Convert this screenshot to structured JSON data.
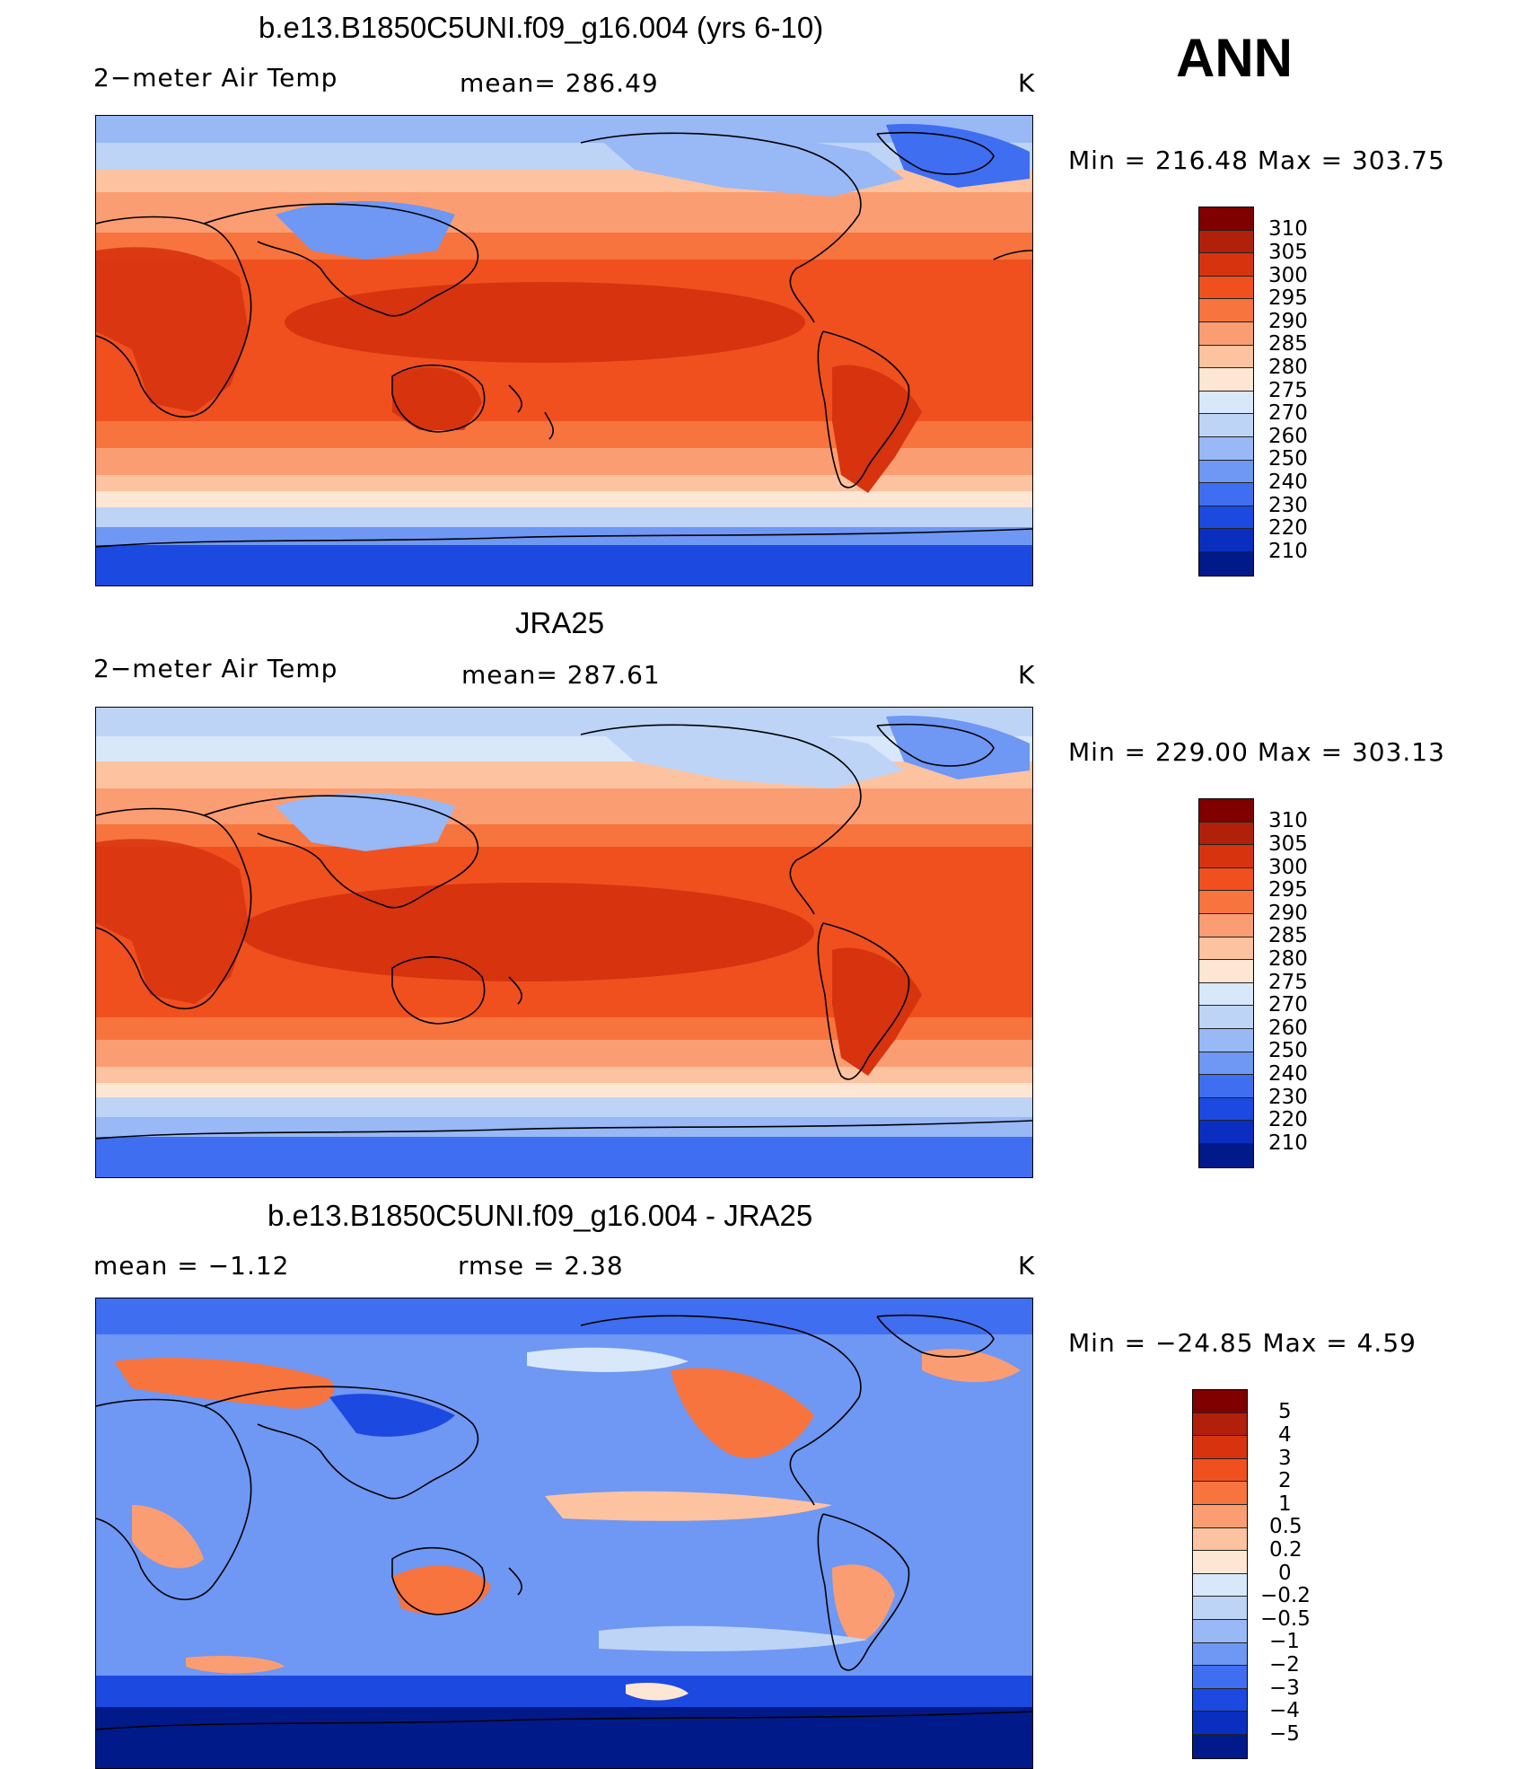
{
  "annual_label": "ANN",
  "unit": "K",
  "panels": [
    {
      "title": "b.e13.B1850C5UNI.f09_g16.004 (yrs 6-10)",
      "left_label": "2−meter Air Temp",
      "center_label": "mean=  286.49",
      "minmax": "Min  =  216.48  Max  =  303.75"
    },
    {
      "title": "JRA25",
      "left_label": "2−meter Air Temp",
      "center_label": "mean=  287.61",
      "minmax": "Min  =  229.00  Max  =  303.13"
    },
    {
      "title": "b.e13.B1850C5UNI.f09_g16.004 - JRA25",
      "left_label": "mean  =    −1.12",
      "center_label": "rmse  =     2.38",
      "minmax": "Min  =  −24.85  Max  =      4.59"
    }
  ],
  "colorbars": {
    "temperature": {
      "labels": [
        "310",
        "305",
        "300",
        "295",
        "290",
        "285",
        "280",
        "275",
        "270",
        "260",
        "250",
        "240",
        "230",
        "220",
        "210"
      ],
      "colors": [
        "#800000",
        "#b0200a",
        "#d7330f",
        "#f0501e",
        "#f7743e",
        "#fb9d72",
        "#fdc2a0",
        "#fde6d4",
        "#d8e8fa",
        "#bdd4f7",
        "#98b8f6",
        "#6f97f4",
        "#3f6ef0",
        "#1c49e0",
        "#0a2fc0",
        "#011a8a"
      ]
    },
    "difference": {
      "labels": [
        "5",
        "4",
        "3",
        "2",
        "1",
        "0.5",
        "0.2",
        "0",
        "−0.2",
        "−0.5",
        "−1",
        "−2",
        "−3",
        "−4",
        "−5"
      ],
      "colors": [
        "#800000",
        "#b0200a",
        "#d7330f",
        "#f0501e",
        "#f7743e",
        "#fb9d72",
        "#fdc2a0",
        "#fde6d4",
        "#d8e8fa",
        "#bdd4f7",
        "#98b8f6",
        "#6f97f4",
        "#3f6ef0",
        "#1c49e0",
        "#0a2fc0",
        "#011a8a"
      ]
    }
  }
}
